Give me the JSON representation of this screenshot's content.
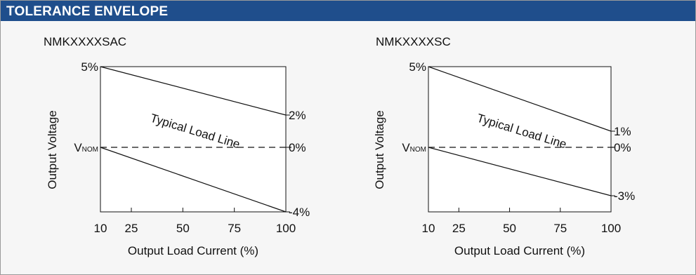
{
  "header": {
    "title": "TOLERANCE ENVELOPE",
    "accent_color": "#1f4e8c"
  },
  "chart_data": [
    {
      "type": "line",
      "title": "NMKXXXXSAC",
      "xlabel": "Output Load Current (%)",
      "ylabel": "Output Voltage",
      "xlim": [
        10,
        100
      ],
      "ylim": [
        -4,
        5
      ],
      "x_ticks": [
        10,
        25,
        50,
        75,
        100
      ],
      "left_labels": [
        {
          "value": 5,
          "text": "5%"
        },
        {
          "value": 0,
          "text": "V",
          "sub": "NOM"
        }
      ],
      "right_labels": [
        {
          "value": 2,
          "text": "2%"
        },
        {
          "value": 0,
          "text": "0%"
        },
        {
          "value": -4,
          "text": "-4%"
        }
      ],
      "series": [
        {
          "role": "upper-limit",
          "x": [
            10,
            100
          ],
          "y": [
            5,
            2
          ],
          "style": "solid"
        },
        {
          "role": "nominal",
          "x": [
            10,
            100
          ],
          "y": [
            0,
            0
          ],
          "style": "dashed"
        },
        {
          "role": "lower-limit",
          "x": [
            10,
            100
          ],
          "y": [
            0,
            -4
          ],
          "style": "solid"
        }
      ],
      "annotation": {
        "text": "Typical Load Line"
      }
    },
    {
      "type": "line",
      "title": "NMKXXXXSC",
      "xlabel": "Output Load Current (%)",
      "ylabel": "Output Voltage",
      "xlim": [
        10,
        100
      ],
      "ylim": [
        -4,
        5
      ],
      "x_ticks": [
        10,
        25,
        50,
        75,
        100
      ],
      "left_labels": [
        {
          "value": 5,
          "text": "5%"
        },
        {
          "value": 0,
          "text": "V",
          "sub": "NOM"
        }
      ],
      "right_labels": [
        {
          "value": 1,
          "text": "1%"
        },
        {
          "value": 0,
          "text": "0%"
        },
        {
          "value": -3,
          "text": "-3%"
        }
      ],
      "series": [
        {
          "role": "upper-limit",
          "x": [
            10,
            100
          ],
          "y": [
            5,
            1
          ],
          "style": "solid"
        },
        {
          "role": "nominal",
          "x": [
            10,
            100
          ],
          "y": [
            0,
            0
          ],
          "style": "dashed"
        },
        {
          "role": "lower-limit",
          "x": [
            10,
            100
          ],
          "y": [
            0,
            -3
          ],
          "style": "solid"
        }
      ],
      "annotation": {
        "text": "Typical Load Line"
      }
    }
  ]
}
